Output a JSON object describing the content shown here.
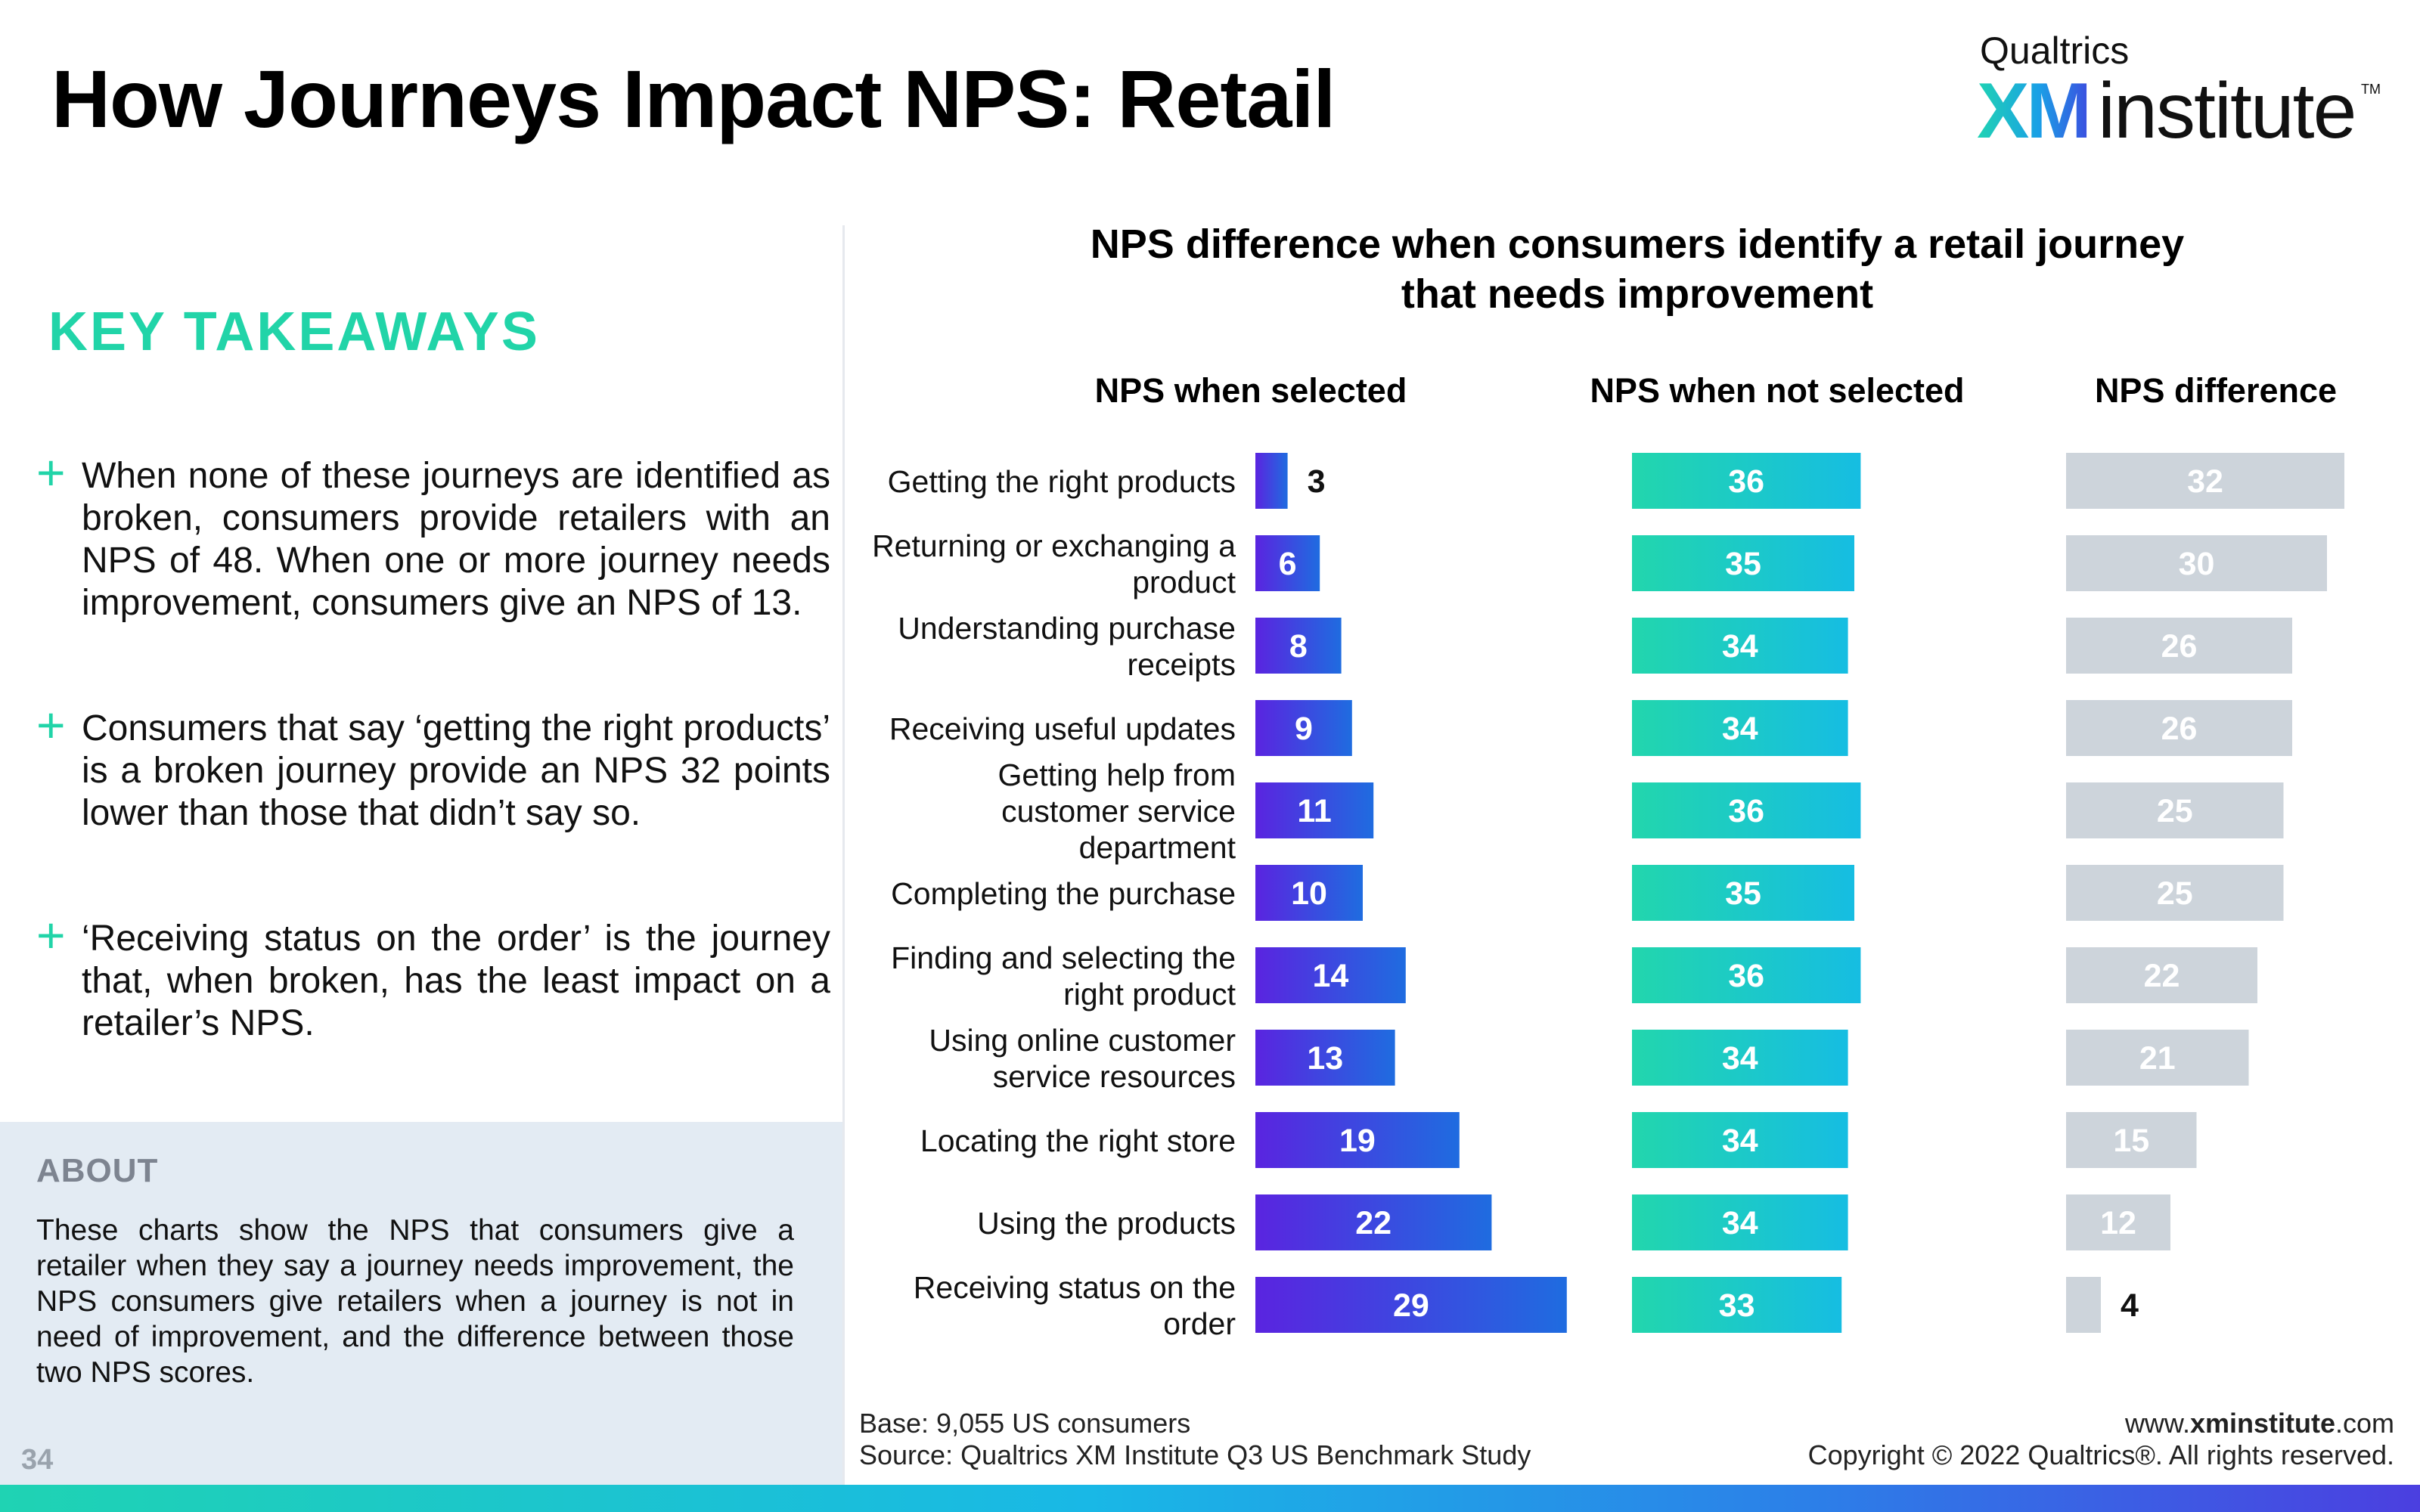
{
  "slide": {
    "title": "How Journeys Impact NPS: Retail",
    "page_number": "34"
  },
  "logo": {
    "brand": "Qualtrics",
    "xm": "XM",
    "institute": "institute",
    "tm": "TM"
  },
  "takeaways": {
    "heading": "KEY TAKEAWAYS",
    "bullet_symbol": "+",
    "items": [
      "When none of these journeys are identified as broken, consumers provide retailers with an NPS of 48. When one or more journey needs improvement, consumers give an NPS of 13.",
      "Consumers that say ‘getting the right products’ is a broken journey provide an NPS 32 points lower than those that didn’t say so.",
      "‘Receiving status on the order’ is the journey that, when broken, has the least impact on a retailer’s NPS."
    ]
  },
  "about": {
    "heading": "ABOUT",
    "text": "These charts show the NPS that consumers give a retailer when they say a journey needs improvement, the NPS consumers give retailers when a journey is not in need of improvement, and the difference between those two NPS scores."
  },
  "footer": {
    "base": "Base: 9,055 US consumers",
    "source": "Source: Qualtrics XM Institute Q3 US Benchmark Study",
    "website_prefix": "www.",
    "website_bold": "xminstitute",
    "website_suffix": ".com",
    "copyright": "Copyright © 2022 Qualtrics®. All rights reserved."
  },
  "colors": {
    "accent_green": "#21d4a8",
    "selected_gradient": [
      "#5a24e0",
      "#1f6ce0"
    ],
    "not_selected_gradient": [
      "#22d6ad",
      "#16bde2"
    ],
    "difference_bar": "#cdd4db"
  },
  "chart_data": {
    "type": "bar",
    "orientation": "horizontal",
    "title": "NPS difference when consumers identify a retail journey that needs improvement",
    "title_lines": [
      "NPS difference when consumers identify a retail journey",
      "that needs improvement"
    ],
    "categories": [
      "Getting the right products",
      "Returning or exchanging a product",
      "Understanding purchase receipts",
      "Receiving useful updates",
      "Getting help from customer service department",
      "Completing the purchase",
      "Finding and selecting the right product",
      "Using online customer service resources",
      "Locating the right store",
      "Using the products",
      "Receiving status on the order"
    ],
    "category_label_lines": [
      [
        "Getting the right products"
      ],
      [
        "Returning or exchanging a",
        "product"
      ],
      [
        "Understanding purchase",
        "receipts"
      ],
      [
        "Receiving useful updates"
      ],
      [
        "Getting help from",
        "customer service",
        "department"
      ],
      [
        "Completing the purchase"
      ],
      [
        "Finding and selecting the",
        "right product"
      ],
      [
        "Using online customer",
        "service resources"
      ],
      [
        "Locating the right store"
      ],
      [
        "Using the products"
      ],
      [
        "Receiving status on the",
        "order"
      ]
    ],
    "series": [
      {
        "name": "NPS when selected",
        "values": [
          3,
          6,
          8,
          9,
          11,
          10,
          14,
          13,
          19,
          22,
          29
        ]
      },
      {
        "name": "NPS when not selected",
        "values": [
          36,
          35,
          34,
          34,
          36,
          35,
          36,
          34,
          34,
          34,
          33
        ]
      },
      {
        "name": "NPS difference",
        "values": [
          32,
          30,
          26,
          26,
          25,
          25,
          22,
          21,
          15,
          12,
          4
        ]
      }
    ],
    "data_labels": true,
    "grid": false,
    "legend": "none"
  }
}
